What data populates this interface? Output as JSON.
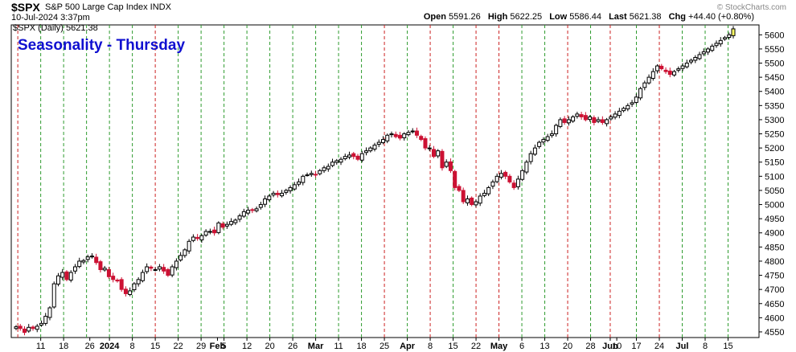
{
  "header": {
    "symbol": "$SPX",
    "company": "S&P 500 Large Cap Index INDX",
    "datetime": "10-Jul-2024 3:37pm",
    "watermark": "© StockCharts.com",
    "open_label": "Open",
    "open": "5591.26",
    "high_label": "High",
    "high": "5622.25",
    "low_label": "Low",
    "low": "5586.44",
    "last_label": "Last",
    "last": "5621.38",
    "chg_label": "Chg",
    "chg": "+44.40 (+0.80%)"
  },
  "legend": "$SPX (Daily) 5621.38",
  "overlay_title": "Seasonality - Thursday",
  "colors": {
    "up": "#000000",
    "down": "#cc1133",
    "green_line": "#2e9b2e",
    "red_line": "#cc2222",
    "title": "#1010d0"
  },
  "chart_data": {
    "type": "candlestick",
    "title": "Seasonality - Thursday",
    "ylim": [
      4530,
      5635
    ],
    "y_ticks": [
      4550,
      4600,
      4650,
      4700,
      4750,
      4800,
      4850,
      4900,
      4950,
      5000,
      5050,
      5100,
      5150,
      5200,
      5250,
      5300,
      5350,
      5400,
      5450,
      5500,
      5550,
      5600
    ],
    "x_ticks": [
      {
        "date": "2024-01-11",
        "label": "11"
      },
      {
        "date": "2024-01-18",
        "label": "18"
      },
      {
        "date": "2024-01-26",
        "label": "26"
      },
      {
        "date": "2024-02-01",
        "label": "2024"
      },
      {
        "date": "2024-02-08",
        "label": "8"
      },
      {
        "date": "2024-02-15",
        "label": "15"
      },
      {
        "date": "2024-02-22",
        "label": "22"
      },
      {
        "date": "2024-02-29",
        "label": "29"
      },
      {
        "date": "2024-03-05",
        "label": "Feb"
      },
      {
        "date": "2024-03-07",
        "label": "5"
      },
      {
        "date": "2024-03-14",
        "label": "12"
      },
      {
        "date": "2024-03-21",
        "label": "20"
      },
      {
        "date": "2024-03-28",
        "label": "26"
      },
      {
        "date": "2024-04-04",
        "label": "Mar"
      },
      {
        "date": "2024-04-11",
        "label": "11"
      },
      {
        "date": "2024-04-18",
        "label": "18"
      },
      {
        "date": "2024-04-25",
        "label": "25"
      },
      {
        "date": "2024-05-02",
        "label": "Apr"
      },
      {
        "date": "2024-05-09",
        "label": "8"
      },
      {
        "date": "2024-05-16",
        "label": "15"
      },
      {
        "date": "2024-05-23",
        "label": "22"
      },
      {
        "date": "2024-05-30",
        "label": "May"
      },
      {
        "date": "2024-06-06",
        "label": "6"
      },
      {
        "date": "2024-06-13",
        "label": "13"
      },
      {
        "date": "2024-06-20",
        "label": "20"
      },
      {
        "date": "2024-06-27",
        "label": "28"
      },
      {
        "date": "2024-07-03",
        "label": "Jun"
      },
      {
        "date": "2024-07-05",
        "label": "10"
      },
      {
        "date": "2024-07-11",
        "label": "17"
      },
      {
        "date": "2024-07-18",
        "label": "24"
      },
      {
        "date": "2024-07-25",
        "label": "Jul"
      },
      {
        "date": "2024-08-01",
        "label": "8"
      },
      {
        "date": "2024-08-08",
        "label": "15"
      }
    ],
    "thursday_lines": [
      {
        "date": "2024-01-04",
        "up": false
      },
      {
        "date": "2024-01-11",
        "up": true
      },
      {
        "date": "2024-01-18",
        "up": true
      },
      {
        "date": "2024-01-25",
        "up": true
      },
      {
        "date": "2024-02-01",
        "up": true
      },
      {
        "date": "2024-02-08",
        "up": true
      },
      {
        "date": "2024-02-15",
        "up": false
      },
      {
        "date": "2024-02-22",
        "up": true
      },
      {
        "date": "2024-02-29",
        "up": true
      },
      {
        "date": "2024-03-07",
        "up": true
      },
      {
        "date": "2024-03-14",
        "up": true
      },
      {
        "date": "2024-03-21",
        "up": true
      },
      {
        "date": "2024-03-28",
        "up": true
      },
      {
        "date": "2024-04-04",
        "up": true
      },
      {
        "date": "2024-04-11",
        "up": true
      },
      {
        "date": "2024-04-18",
        "up": true
      },
      {
        "date": "2024-04-25",
        "up": false
      },
      {
        "date": "2024-05-02",
        "up": true
      },
      {
        "date": "2024-05-09",
        "up": false
      },
      {
        "date": "2024-05-16",
        "up": true
      },
      {
        "date": "2024-05-23",
        "up": false
      },
      {
        "date": "2024-05-30",
        "up": false
      },
      {
        "date": "2024-06-06",
        "up": true
      },
      {
        "date": "2024-06-13",
        "up": true
      },
      {
        "date": "2024-06-20",
        "up": false
      },
      {
        "date": "2024-06-27",
        "up": true
      },
      {
        "date": "2024-07-03",
        "up": false
      },
      {
        "date": "2024-07-11",
        "up": true
      },
      {
        "date": "2024-07-18",
        "up": false
      },
      {
        "date": "2024-07-25",
        "up": true
      },
      {
        "date": "2024-08-01",
        "up": true
      },
      {
        "date": "2024-08-08",
        "up": true
      }
    ],
    "closes": [
      4568,
      4562,
      4548,
      4566,
      4562,
      4570,
      4580,
      4605,
      4635,
      4720,
      4748,
      4760,
      4735,
      4760,
      4780,
      4800,
      4802,
      4815,
      4818,
      4795,
      4770,
      4775,
      4745,
      4735,
      4730,
      4700,
      4685,
      4695,
      4720,
      4735,
      4760,
      4780,
      4775,
      4770,
      4780,
      4765,
      4750,
      4780,
      4800,
      4820,
      4840,
      4870,
      4885,
      4880,
      4890,
      4905,
      4905,
      4900,
      4935,
      4920,
      4930,
      4940,
      4945,
      4960,
      4975,
      4980,
      4980,
      4985,
      5000,
      5020,
      5030,
      5040,
      5035,
      5040,
      5050,
      5060,
      5070,
      5080,
      5100,
      5105,
      5110,
      5105,
      5120,
      5130,
      5135,
      5150,
      5155,
      5160,
      5170,
      5175,
      5170,
      5160,
      5180,
      5190,
      5200,
      5210,
      5220,
      5230,
      5245,
      5250,
      5240,
      5235,
      5250,
      5255,
      5260,
      5245,
      5230,
      5200,
      5200,
      5170,
      5190,
      5130,
      5150,
      5120,
      5060,
      5050,
      5010,
      5020,
      5000,
      5010,
      5030,
      5040,
      5060,
      5080,
      5100,
      5110,
      5100,
      5080,
      5060,
      5090,
      5120,
      5150,
      5180,
      5200,
      5220,
      5230,
      5240,
      5250,
      5280,
      5300,
      5290,
      5300,
      5310,
      5320,
      5310,
      5300,
      5310,
      5290,
      5300,
      5290,
      5300,
      5310,
      5320,
      5330,
      5340,
      5350,
      5360,
      5380,
      5410,
      5430,
      5450,
      5470,
      5490,
      5480,
      5470,
      5460,
      5470,
      5480,
      5490,
      5500,
      5510,
      5520,
      5530,
      5540,
      5550,
      5560,
      5570,
      5580,
      5590,
      5600,
      5621
    ]
  }
}
